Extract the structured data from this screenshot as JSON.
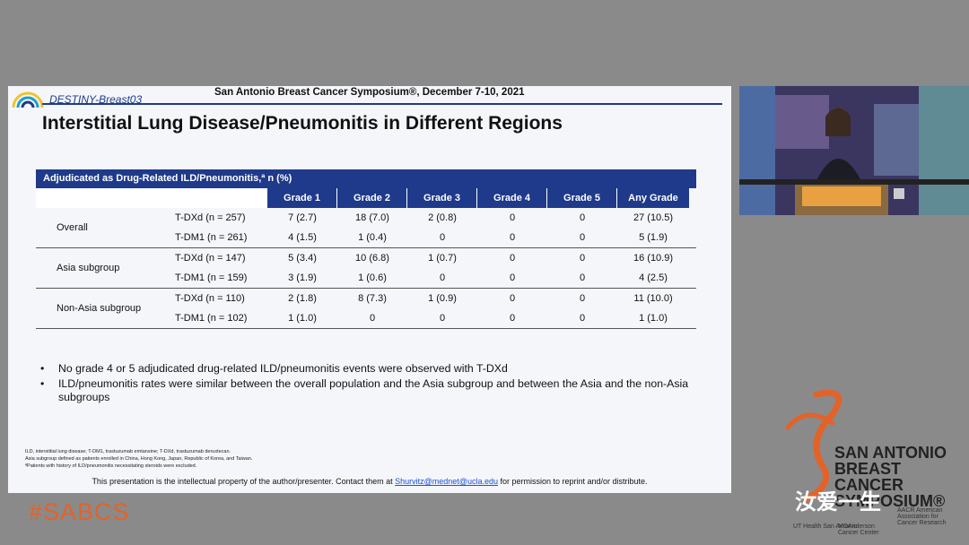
{
  "slide": {
    "trial_name": "DESTINY-Breast03",
    "conference": "San Antonio Breast Cancer Symposium®, December 7-10, 2021",
    "title": "Interstitial Lung Disease/Pneumonitis in Different Regions",
    "table": {
      "caption": "Adjudicated as Drug-Related ILD/Pneumonitis,ª n (%)",
      "headers": [
        "Grade 1",
        "Grade 2",
        "Grade 3",
        "Grade 4",
        "Grade 5",
        "Any Grade"
      ],
      "groups": [
        {
          "label": "Overall",
          "rows": [
            {
              "arm": "T-DXd (n = 257)",
              "values": [
                "7 (2.7)",
                "18 (7.0)",
                "2 (0.8)",
                "0",
                "0",
                "27 (10.5)"
              ]
            },
            {
              "arm": "T-DM1 (n = 261)",
              "values": [
                "4 (1.5)",
                "1 (0.4)",
                "0",
                "0",
                "0",
                "5 (1.9)"
              ]
            }
          ]
        },
        {
          "label": "Asia subgroup",
          "rows": [
            {
              "arm": "T-DXd (n = 147)",
              "values": [
                "5 (3.4)",
                "10 (6.8)",
                "1 (0.7)",
                "0",
                "0",
                "16 (10.9)"
              ]
            },
            {
              "arm": "T-DM1 (n = 159)",
              "values": [
                "3 (1.9)",
                "1 (0.6)",
                "0",
                "0",
                "0",
                "4 (2.5)"
              ]
            }
          ]
        },
        {
          "label": "Non-Asia subgroup",
          "rows": [
            {
              "arm": "T-DXd (n = 110)",
              "values": [
                "2 (1.8)",
                "8 (7.3)",
                "1 (0.9)",
                "0",
                "0",
                "11 (10.0)"
              ]
            },
            {
              "arm": "T-DM1 (n = 102)",
              "values": [
                "1 (1.0)",
                "0",
                "0",
                "0",
                "0",
                "1 (1.0)"
              ]
            }
          ]
        }
      ]
    },
    "bullets": [
      "No grade 4 or 5 adjudicated drug-related ILD/pneumonitis events were observed with T-DXd",
      "ILD/pneumonitis rates were similar between the overall population and the Asia subgroup and between the Asia and the non-Asia subgroups"
    ],
    "footnotes": [
      "ILD, interstitial lung disease; T-DM1, trastuzumab emtansine; T-DXd, trastuzumab deruxtecan.",
      "Asia subgroup defined as patients enrolled in China, Hong Kong, Japan, Republic of Korea, and Taiwan.",
      "ªPatients with history of ILD/pneumonitis necessitating steroids were excluded."
    ],
    "ip_notice_prefix": "This presentation is the intellectual property of the author/presenter. Contact them at ",
    "ip_email": "Shurvitz@mednet@ucla.edu",
    "ip_notice_suffix": " for permission to reprint and/or distribute."
  },
  "overlay": {
    "hashtag": "#SABCS",
    "sabcs_lines": [
      "SAN ANTONIO",
      "BREAST CANCER",
      "SYMPOSIUM®"
    ],
    "watermark": "汝爱一生",
    "sponsors": [
      "UT Health San Antonio",
      "MDAnderson Cancer Center",
      "AACR American Association for Cancer Research"
    ],
    "podium_label": "SABCS"
  },
  "colors": {
    "navy": "#1f3a8a",
    "orange": "#e2632a",
    "background": "#8a8a8a"
  }
}
